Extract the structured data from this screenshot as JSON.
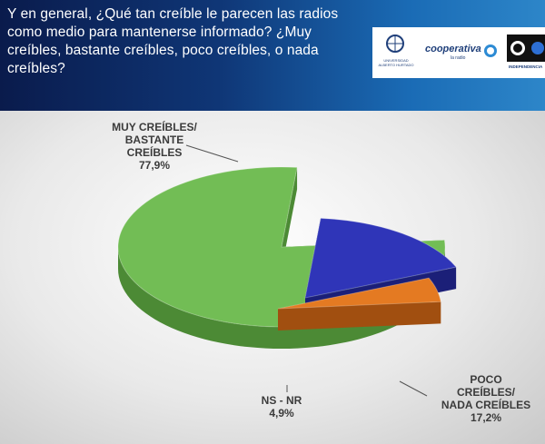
{
  "question": "Y en general, ¿Qué tan creíble le parecen las radios como medio para mantenerse informado? ¿Muy creíbles, bastante creíbles, poco creíbles, o nada creíbles?",
  "logos": {
    "logo1_icon": "globe-icon",
    "logo1_text": "UNIVERSIDAD ALBERTO HURTADO",
    "logo2_text": "cooperativa",
    "logo2_sub": "la radio",
    "logo3_icon": "circle-emblem-icon",
    "logo3_text": "INDEPENDENCIA"
  },
  "chart_data": {
    "type": "pie",
    "title": "",
    "slices": [
      {
        "label_lines": [
          "MUY CREÍBLES/",
          "BASTANTE",
          "CREÍBLES"
        ],
        "value": 77.9,
        "value_label": "77,9%",
        "color": "#72bd55",
        "side_color": "#4c8a35"
      },
      {
        "label_lines": [
          "POCO",
          "CREÍBLES/",
          "NADA CREÍBLES"
        ],
        "value": 17.2,
        "value_label": "17,2%",
        "color": "#2f35b8",
        "side_color": "#1b1f78"
      },
      {
        "label_lines": [
          "NS - NR"
        ],
        "value": 4.9,
        "value_label": "4,9%",
        "color": "#e47a22",
        "side_color": "#a14f10"
      }
    ]
  }
}
